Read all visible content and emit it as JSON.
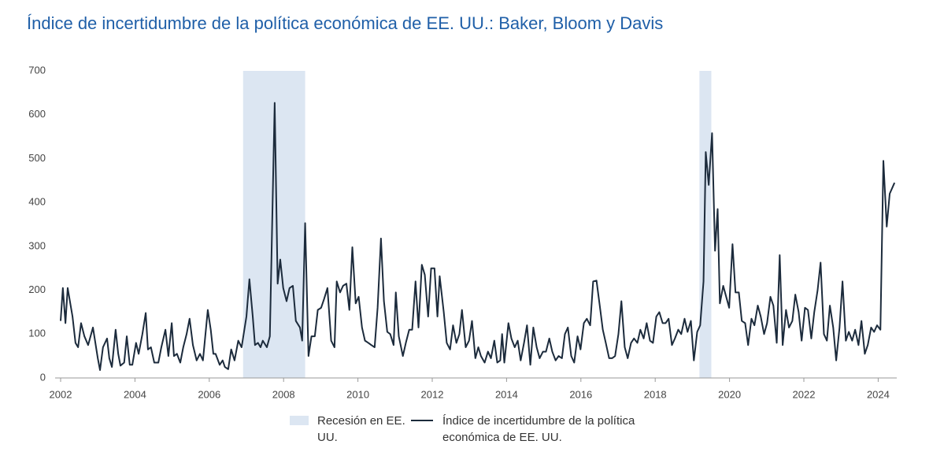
{
  "chart_data": {
    "type": "line",
    "title": "Índice de incertidumbre de la política económica de EE. UU.: Baker, Bloom y Davis",
    "xlim": [
      2002,
      2024.5
    ],
    "xticks": [
      2002,
      2004,
      2006,
      2008,
      2010,
      2012,
      2014,
      2016,
      2018,
      2020,
      2022,
      2024
    ],
    "ylim": [
      0,
      700
    ],
    "yticks": [
      0,
      100,
      200,
      300,
      400,
      500,
      600,
      700
    ],
    "grid": false,
    "bands": {
      "name": "Recesión en EE. UU.",
      "color": "#dce6f2",
      "ranges": [
        [
          2006.91,
          2008.58
        ],
        [
          2019.19,
          2019.51
        ]
      ]
    },
    "x": [
      2002.0,
      2002.06,
      2002.13,
      2002.19,
      2002.32,
      2002.4,
      2002.47,
      2002.55,
      2002.64,
      2002.74,
      2002.87,
      2003.0,
      2003.06,
      2003.14,
      2003.25,
      2003.31,
      2003.38,
      2003.48,
      2003.55,
      2003.61,
      2003.71,
      2003.78,
      2003.86,
      2003.93,
      2004.03,
      2004.1,
      2004.2,
      2004.29,
      2004.35,
      2004.43,
      2004.52,
      2004.63,
      2004.71,
      2004.82,
      2004.9,
      2004.99,
      2005.05,
      2005.13,
      2005.22,
      2005.3,
      2005.39,
      2005.47,
      2005.56,
      2005.66,
      2005.75,
      2005.83,
      2005.96,
      2006.04,
      2006.11,
      2006.17,
      2006.28,
      2006.36,
      2006.42,
      2006.51,
      2006.59,
      2006.68,
      2006.78,
      2006.87,
      2007.0,
      2007.08,
      2007.17,
      2007.23,
      2007.31,
      2007.38,
      2007.44,
      2007.55,
      2007.63,
      2007.76,
      2007.84,
      2007.91,
      2007.99,
      2008.08,
      2008.16,
      2008.25,
      2008.33,
      2008.44,
      2008.5,
      2008.58,
      2008.67,
      2008.75,
      2008.84,
      2008.92,
      2009.01,
      2009.09,
      2009.18,
      2009.28,
      2009.37,
      2009.43,
      2009.52,
      2009.6,
      2009.69,
      2009.77,
      2009.85,
      2009.94,
      2010.02,
      2010.11,
      2010.19,
      2010.28,
      2010.36,
      2010.45,
      2010.53,
      2010.62,
      2010.7,
      2010.79,
      2010.87,
      2010.96,
      2011.02,
      2011.1,
      2011.21,
      2011.29,
      2011.38,
      2011.46,
      2011.55,
      2011.63,
      2011.72,
      2011.8,
      2011.89,
      2011.97,
      2012.06,
      2012.14,
      2012.2,
      2012.31,
      2012.39,
      2012.48,
      2012.56,
      2012.65,
      2012.73,
      2012.8,
      2012.9,
      2012.99,
      2013.07,
      2013.16,
      2013.24,
      2013.31,
      2013.41,
      2013.5,
      2013.58,
      2013.67,
      2013.75,
      2013.83,
      2013.88,
      2013.94,
      2014.05,
      2014.13,
      2014.22,
      2014.3,
      2014.38,
      2014.47,
      2014.55,
      2014.64,
      2014.72,
      2014.81,
      2014.89,
      2014.98,
      2015.06,
      2015.15,
      2015.23,
      2015.32,
      2015.4,
      2015.49,
      2015.57,
      2015.65,
      2015.74,
      2015.82,
      2015.91,
      2015.99,
      2016.08,
      2016.16,
      2016.25,
      2016.33,
      2016.42,
      2016.5,
      2016.59,
      2016.67,
      2016.76,
      2016.84,
      2016.92,
      2017.01,
      2017.09,
      2017.18,
      2017.26,
      2017.35,
      2017.43,
      2017.52,
      2017.6,
      2017.69,
      2017.77,
      2017.86,
      2017.94,
      2018.03,
      2018.11,
      2018.2,
      2018.28,
      2018.36,
      2018.45,
      2018.53,
      2018.62,
      2018.7,
      2018.79,
      2018.87,
      2018.96,
      2019.04,
      2019.13,
      2019.21,
      2019.3,
      2019.36,
      2019.44,
      2019.53,
      2019.61,
      2019.68,
      2019.74,
      2019.83,
      2019.91,
      2019.99,
      2020.08,
      2020.16,
      2020.25,
      2020.33,
      2020.42,
      2020.5,
      2020.59,
      2020.67,
      2020.76,
      2020.84,
      2020.93,
      2021.01,
      2021.1,
      2021.18,
      2021.27,
      2021.35,
      2021.43,
      2021.52,
      2021.6,
      2021.69,
      2021.77,
      2021.86,
      2021.94,
      2022.03,
      2022.11,
      2022.2,
      2022.28,
      2022.37,
      2022.45,
      2022.54,
      2022.62,
      2022.7,
      2022.79,
      2022.87,
      2022.96,
      2023.04,
      2023.13,
      2023.21,
      2023.3,
      2023.38,
      2023.47,
      2023.55,
      2023.64,
      2023.72,
      2023.81,
      2023.89,
      2023.97,
      2024.06,
      2024.14,
      2024.23,
      2024.31,
      2024.44
    ],
    "series": [
      {
        "name": "Índice de incertidumbre de la política económica de EE. UU.",
        "color": "#1c2b3c",
        "values": [
          130,
          205,
          125,
          205,
          140,
          80,
          70,
          125,
          95,
          75,
          115,
          45,
          18,
          70,
          90,
          45,
          25,
          110,
          55,
          28,
          35,
          95,
          30,
          30,
          80,
          55,
          100,
          148,
          65,
          70,
          35,
          35,
          70,
          110,
          50,
          125,
          50,
          55,
          35,
          70,
          100,
          135,
          75,
          40,
          55,
          40,
          155,
          110,
          55,
          55,
          30,
          40,
          25,
          20,
          65,
          40,
          85,
          70,
          140,
          225,
          140,
          75,
          80,
          70,
          85,
          70,
          95,
          627,
          215,
          270,
          205,
          175,
          205,
          210,
          130,
          115,
          85,
          353,
          50,
          95,
          95,
          155,
          160,
          180,
          205,
          85,
          70,
          220,
          195,
          210,
          215,
          155,
          298,
          170,
          185,
          115,
          85,
          80,
          75,
          70,
          160,
          318,
          175,
          105,
          100,
          75,
          195,
          95,
          50,
          80,
          110,
          110,
          220,
          115,
          258,
          235,
          140,
          250,
          250,
          140,
          232,
          150,
          80,
          65,
          120,
          80,
          100,
          155,
          70,
          85,
          130,
          45,
          70,
          50,
          35,
          60,
          45,
          85,
          35,
          40,
          100,
          35,
          125,
          90,
          70,
          85,
          40,
          80,
          120,
          30,
          115,
          70,
          45,
          60,
          60,
          90,
          60,
          40,
          50,
          45,
          100,
          115,
          50,
          35,
          95,
          65,
          125,
          135,
          120,
          220,
          222,
          170,
          110,
          80,
          45,
          45,
          50,
          100,
          175,
          70,
          45,
          80,
          90,
          80,
          110,
          90,
          125,
          85,
          80,
          140,
          150,
          125,
          125,
          135,
          75,
          90,
          110,
          100,
          135,
          105,
          130,
          40,
          105,
          120,
          220,
          515,
          440,
          558,
          290,
          385,
          170,
          210,
          185,
          160,
          305,
          195,
          195,
          130,
          125,
          75,
          135,
          120,
          165,
          140,
          100,
          125,
          185,
          165,
          80,
          280,
          75,
          155,
          115,
          130,
          190,
          150,
          85,
          160,
          155,
          90,
          150,
          200,
          263,
          100,
          85,
          165,
          115,
          40,
          115,
          220,
          85,
          105,
          85,
          110,
          75,
          130,
          55,
          75,
          115,
          105,
          120,
          110,
          495,
          345,
          420,
          445
        ]
      }
    ]
  }
}
